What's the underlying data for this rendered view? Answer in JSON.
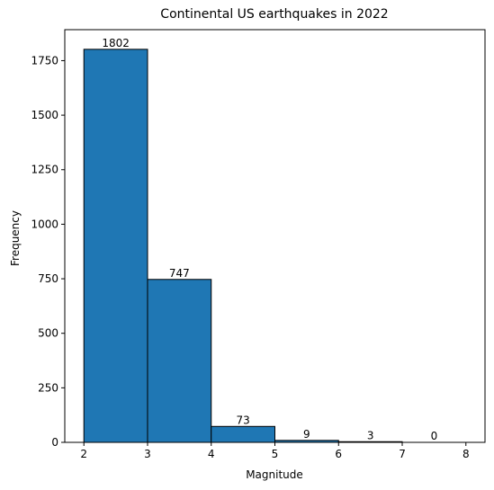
{
  "chart_data": {
    "type": "bar",
    "title": "Continental US earthquakes in 2022",
    "xlabel": "Magnitude",
    "ylabel": "Frequency",
    "bins": [
      [
        2,
        3
      ],
      [
        3,
        4
      ],
      [
        4,
        5
      ],
      [
        5,
        6
      ],
      [
        6,
        7
      ],
      [
        7,
        8
      ]
    ],
    "values": [
      1802,
      747,
      73,
      9,
      3,
      0
    ],
    "data_labels": [
      "1802",
      "747",
      "73",
      "9",
      "3",
      "0"
    ],
    "xlim": [
      1.7,
      8.3
    ],
    "ylim": [
      0,
      1892
    ],
    "x_ticks": [
      2,
      3,
      4,
      5,
      6,
      7,
      8
    ],
    "x_tick_labels": [
      "2",
      "3",
      "4",
      "5",
      "6",
      "7",
      "8"
    ],
    "y_ticks": [
      0,
      250,
      500,
      750,
      1000,
      1250,
      1500,
      1750
    ],
    "y_tick_labels": [
      "0",
      "250",
      "500",
      "750",
      "1000",
      "1250",
      "1500",
      "1750"
    ],
    "grid": false,
    "legend": "none",
    "colors": {
      "bar_fill": "#1f77b4",
      "bar_edge": "#000000"
    }
  }
}
